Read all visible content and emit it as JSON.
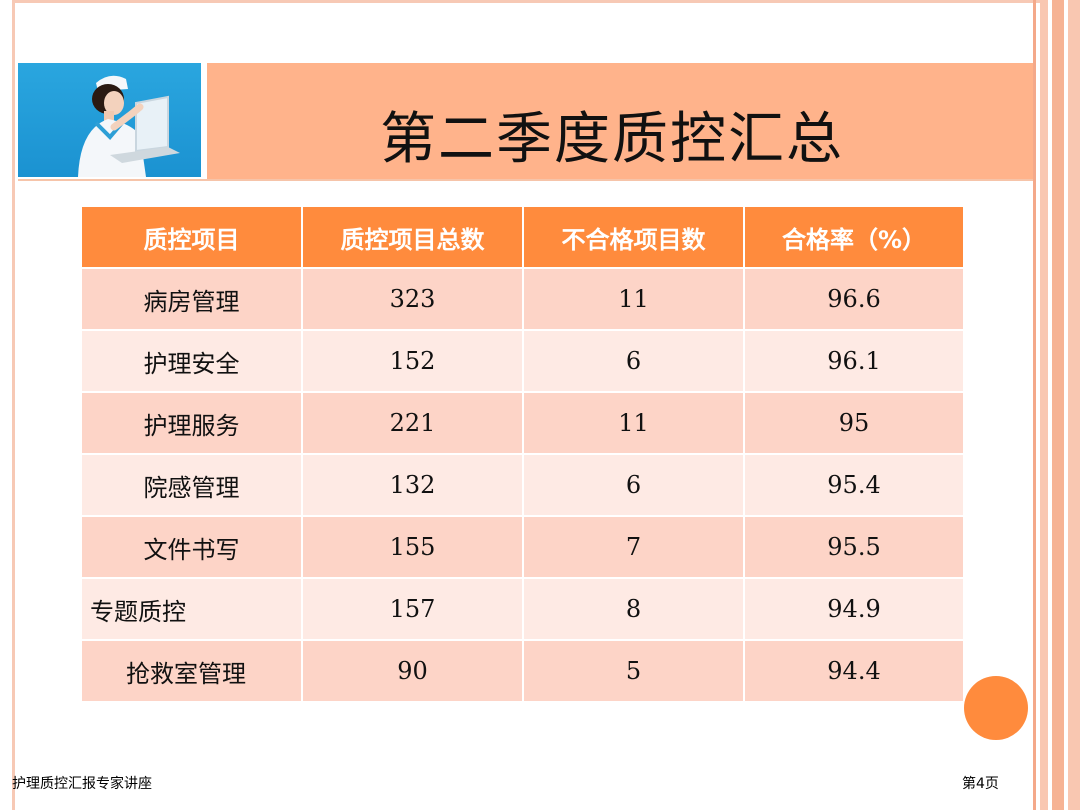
{
  "slide": {
    "title": "第二季度质控汇总",
    "footer_left": "护理质控汇报专家讲座",
    "footer_right": "第4页"
  },
  "table": {
    "headers": [
      "质控项目",
      "质控项目总数",
      "不合格项目数",
      "合格率（%）"
    ],
    "rows": [
      [
        "病房管理",
        "323",
        "11",
        "96.6"
      ],
      [
        "护理安全",
        "152",
        "6",
        "96.1"
      ],
      [
        "护理服务",
        "221",
        "11",
        "95"
      ],
      [
        "院感管理",
        "132",
        "6",
        "95.4"
      ],
      [
        "文件书写",
        "155",
        "7",
        "95.5"
      ],
      [
        "专题质控",
        "157",
        "8",
        "94.9"
      ],
      [
        "抢救室管理",
        "90",
        "5",
        "94.4"
      ]
    ]
  },
  "colors": {
    "header_bar": "#ffb38b",
    "table_header": "#ff8b3d",
    "row_odd": "#fdd4c7",
    "row_even": "#feeae4",
    "accent_circle": "#ff8b3d"
  },
  "icons": {
    "photo": "nurse-with-laptop-photo"
  }
}
